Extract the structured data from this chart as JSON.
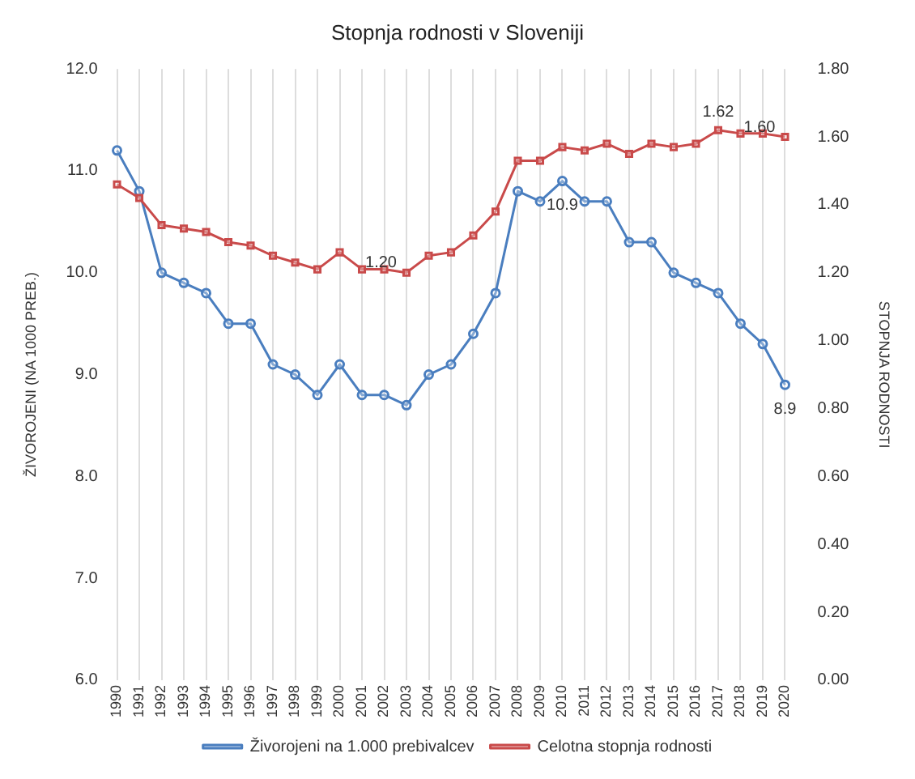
{
  "chart_data": {
    "type": "line",
    "title": "Stopnja rodnosti v Sloveniji",
    "ylabel": "ŽIVOROJENI (NA 1000 PREB.)",
    "y2label": "STOPNJA RODNOSTI",
    "categories": [
      "1990",
      "1991",
      "1992",
      "1993",
      "1994",
      "1995",
      "1996",
      "1997",
      "1998",
      "1999",
      "2000",
      "2001",
      "2002",
      "2003",
      "2004",
      "2005",
      "2006",
      "2007",
      "2008",
      "2009",
      "2010",
      "2011",
      "2012",
      "2013",
      "2014",
      "2015",
      "2016",
      "2017",
      "2018",
      "2019",
      "2020"
    ],
    "series": [
      {
        "name": "Živorojeni na 1.000 prebivalcev",
        "color": "#4a7ebf",
        "marker": "circle",
        "values": [
          11.2,
          10.8,
          10.0,
          9.9,
          9.8,
          9.5,
          9.5,
          9.1,
          9.0,
          8.8,
          9.1,
          8.8,
          8.8,
          8.7,
          9.0,
          9.1,
          9.4,
          9.8,
          10.8,
          10.7,
          10.9,
          10.7,
          10.7,
          10.3,
          10.3,
          10.0,
          9.9,
          9.8,
          9.5,
          9.3,
          8.9
        ],
        "value_labels": [
          null,
          null,
          null,
          null,
          null,
          null,
          null,
          null,
          null,
          null,
          null,
          null,
          null,
          null,
          null,
          null,
          null,
          null,
          null,
          null,
          "10.9",
          null,
          null,
          null,
          null,
          null,
          null,
          null,
          null,
          null,
          "8.9"
        ]
      },
      {
        "name": "Celotna stopnja rodnosti",
        "color": "#c94a4a",
        "marker": "square",
        "axis": "y2",
        "values": [
          1.46,
          1.42,
          1.34,
          1.33,
          1.32,
          1.29,
          1.28,
          1.25,
          1.23,
          1.21,
          1.26,
          1.21,
          1.21,
          1.2,
          1.25,
          1.26,
          1.31,
          1.38,
          1.53,
          1.53,
          1.57,
          1.56,
          1.58,
          1.55,
          1.58,
          1.57,
          1.58,
          1.62,
          1.61,
          1.61,
          1.6
        ],
        "value_labels": [
          null,
          null,
          null,
          null,
          null,
          null,
          null,
          null,
          null,
          null,
          null,
          null,
          null,
          "1.20",
          null,
          null,
          null,
          null,
          null,
          null,
          null,
          null,
          null,
          null,
          null,
          null,
          null,
          "1.62",
          null,
          null,
          "1.60"
        ]
      }
    ],
    "ylim": [
      6,
      12
    ],
    "yticks": [
      {
        "value": 6,
        "label": "6.0"
      },
      {
        "value": 7,
        "label": "7.0"
      },
      {
        "value": 8,
        "label": "8.0"
      },
      {
        "value": 9,
        "label": "9.0"
      },
      {
        "value": 10,
        "label": "10.0"
      },
      {
        "value": 11,
        "label": "11.0"
      },
      {
        "value": 12,
        "label": "12.0"
      }
    ],
    "y2lim": [
      0,
      1.8
    ],
    "y2ticks": [
      {
        "value": 0,
        "label": "0.00"
      },
      {
        "value": 0.2,
        "label": "0.20"
      },
      {
        "value": 0.4,
        "label": "0.40"
      },
      {
        "value": 0.6,
        "label": "0.60"
      },
      {
        "value": 0.8,
        "label": "0.80"
      },
      {
        "value": 1,
        "label": "1.00"
      },
      {
        "value": 1.2,
        "label": "1.20"
      },
      {
        "value": 1.4,
        "label": "1.40"
      },
      {
        "value": 1.6,
        "label": "1.60"
      },
      {
        "value": 1.8,
        "label": "1.80"
      }
    ],
    "grid": "x",
    "legend": "bottom"
  }
}
